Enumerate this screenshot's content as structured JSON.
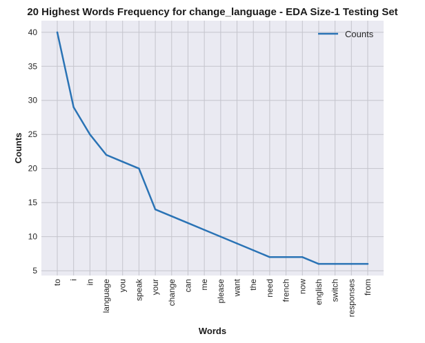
{
  "chart_data": {
    "type": "line",
    "title": "20 Highest Words Frequency for change_language - EDA Size-1 Testing Set",
    "xlabel": "Words",
    "ylabel": "Counts",
    "categories": [
      "to",
      "i",
      "in",
      "language",
      "you",
      "speak",
      "your",
      "change",
      "can",
      "me",
      "please",
      "want",
      "the",
      "need",
      "french",
      "now",
      "english",
      "switch",
      "responses",
      "from"
    ],
    "series": [
      {
        "name": "Counts",
        "values": [
          40,
          29,
          25,
          22,
          21,
          20,
          14,
          13,
          12,
          11,
          10,
          9,
          8,
          7,
          7,
          7,
          6,
          6,
          6,
          6
        ]
      }
    ],
    "yticks": [
      5,
      10,
      15,
      20,
      25,
      30,
      35,
      40
    ],
    "ylim": [
      4.3,
      41.7
    ],
    "grid": true,
    "legend_position": "top-right",
    "colors": {
      "line": "#2a73b5",
      "plot_background": "#eaeaf2",
      "grid": "#c4c4cc"
    }
  }
}
